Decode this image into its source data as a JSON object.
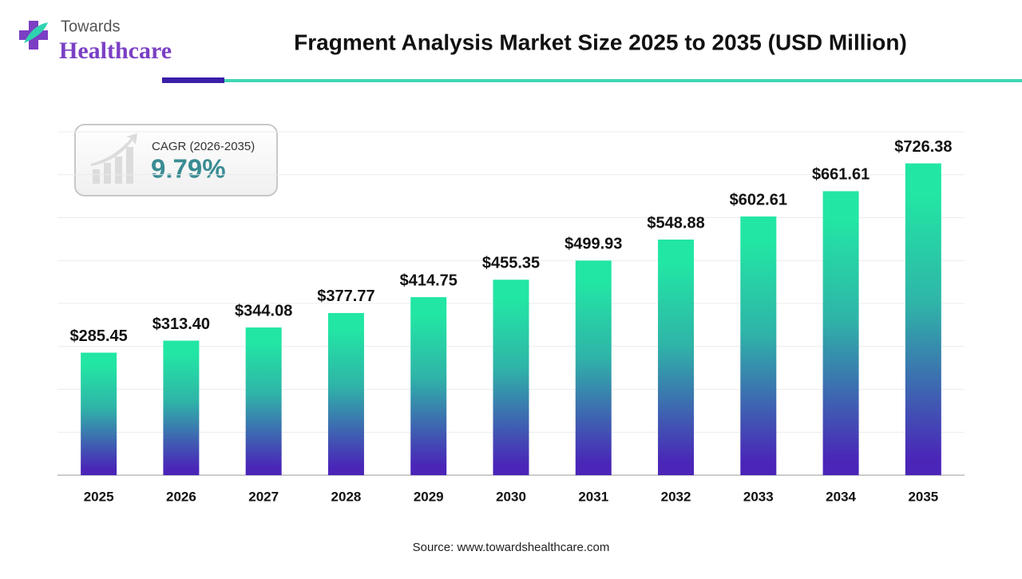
{
  "header": {
    "logo_top": "Towards",
    "logo_bottom": "Healthcare"
  },
  "cagr": {
    "label": "CAGR (2026-2035)",
    "value": "9.79%"
  },
  "source": "Source: www.towardshealthcare.com",
  "chart_data": {
    "type": "bar",
    "title": "Fragment Analysis Market Size 2025 to 2035 (USD Million)",
    "categories": [
      "2025",
      "2026",
      "2027",
      "2028",
      "2029",
      "2030",
      "2031",
      "2032",
      "2033",
      "2034",
      "2035"
    ],
    "values": [
      285.45,
      313.4,
      344.08,
      377.77,
      414.75,
      455.35,
      499.93,
      548.88,
      602.61,
      661.61,
      726.38
    ],
    "value_labels": [
      "$285.45",
      "$313.40",
      "$344.08",
      "$377.77",
      "$414.75",
      "$455.35",
      "$499.93",
      "$548.88",
      "$602.61",
      "$661.61",
      "$726.38"
    ],
    "color_top": "#22e6a4",
    "color_bottom": "#4a25b8",
    "ylim": [
      0,
      800
    ],
    "yticks": [
      0,
      100,
      200,
      300,
      400,
      500,
      600,
      700,
      800
    ],
    "ytick_labels_visible": false,
    "grid": true
  }
}
